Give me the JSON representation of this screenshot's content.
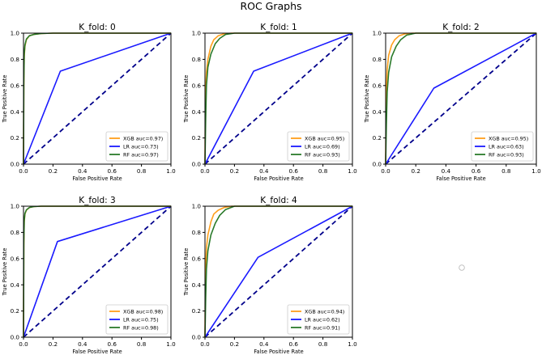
{
  "figure_title": "ROC Graphs",
  "colors": {
    "XGB": "#ff9f1c",
    "LR": "#1a1aff",
    "RF": "#2a7a2a",
    "diagonal": "#00008b"
  },
  "chart_data": [
    {
      "type": "line",
      "title": "K_fold: 0",
      "xlabel": "False Positive Rate",
      "ylabel": "True Positive Rate",
      "xlim": [
        0,
        1
      ],
      "ylim": [
        0,
        1
      ],
      "xticks": [
        "0.0",
        "0.2",
        "0.4",
        "0.6",
        "0.8",
        "1.0"
      ],
      "yticks": [
        "0.0",
        "0.2",
        "0.4",
        "0.6",
        "0.8",
        "1.0"
      ],
      "series": [
        {
          "name": "XGB",
          "label": "XGB auc=0.97)",
          "color": "#ff9f1c",
          "x": [
            0,
            0.002,
            0.005,
            0.01,
            0.02,
            0.04,
            0.07,
            0.12,
            0.2,
            1
          ],
          "y": [
            0,
            0.6,
            0.82,
            0.9,
            0.95,
            0.98,
            0.99,
            0.997,
            1,
            1
          ]
        },
        {
          "name": "LR",
          "label": "LR auc=0.73)",
          "color": "#1a1aff",
          "x": [
            0,
            0.25,
            1
          ],
          "y": [
            0,
            0.71,
            1
          ]
        },
        {
          "name": "RF",
          "label": "RF auc=0.97)",
          "color": "#2a7a2a",
          "x": [
            0,
            0.002,
            0.005,
            0.01,
            0.02,
            0.04,
            0.07,
            0.12,
            0.2,
            1
          ],
          "y": [
            0,
            0.62,
            0.84,
            0.91,
            0.955,
            0.98,
            0.99,
            0.997,
            1,
            1
          ]
        }
      ]
    },
    {
      "type": "line",
      "title": "K_fold: 1",
      "xlabel": "False Positive Rate",
      "ylabel": "True Positive Rate",
      "xlim": [
        0,
        1
      ],
      "ylim": [
        0,
        1
      ],
      "xticks": [
        "0.0",
        "0.2",
        "0.4",
        "0.6",
        "0.8",
        "1.0"
      ],
      "yticks": [
        "0.0",
        "0.2",
        "0.4",
        "0.6",
        "0.8",
        "1.0"
      ],
      "series": [
        {
          "name": "XGB",
          "label": "XGB auc=0.95)",
          "color": "#ff9f1c",
          "x": [
            0,
            0.003,
            0.01,
            0.02,
            0.04,
            0.06,
            0.09,
            0.13,
            0.18,
            1
          ],
          "y": [
            0,
            0.5,
            0.7,
            0.8,
            0.9,
            0.95,
            0.98,
            0.995,
            1,
            1
          ]
        },
        {
          "name": "LR",
          "label": "LR auc=0.69)",
          "color": "#1a1aff",
          "x": [
            0,
            0.33,
            1
          ],
          "y": [
            0,
            0.71,
            1
          ]
        },
        {
          "name": "RF",
          "label": "RF auc=0.93)",
          "color": "#2a7a2a",
          "x": [
            0,
            0.005,
            0.01,
            0.02,
            0.04,
            0.07,
            0.1,
            0.14,
            0.2,
            1
          ],
          "y": [
            0,
            0.35,
            0.6,
            0.74,
            0.84,
            0.92,
            0.96,
            0.99,
            1,
            1
          ]
        }
      ]
    },
    {
      "type": "line",
      "title": "K_fold: 2",
      "xlabel": "False Positive Rate",
      "ylabel": "True Positive Rate",
      "xlim": [
        0,
        1
      ],
      "ylim": [
        0,
        1
      ],
      "xticks": [
        "0.0",
        "0.2",
        "0.4",
        "0.6",
        "0.8",
        "1.0"
      ],
      "yticks": [
        "0.0",
        "0.2",
        "0.4",
        "0.6",
        "0.8",
        "1.0"
      ],
      "series": [
        {
          "name": "XGB",
          "label": "XGB auc=0.95)",
          "color": "#ff9f1c",
          "x": [
            0,
            0.003,
            0.01,
            0.02,
            0.04,
            0.06,
            0.09,
            0.13,
            0.18,
            1
          ],
          "y": [
            0,
            0.5,
            0.72,
            0.83,
            0.91,
            0.95,
            0.98,
            0.995,
            1,
            1
          ]
        },
        {
          "name": "LR",
          "label": "LR auc=0.63)",
          "color": "#1a1aff",
          "x": [
            0,
            0.32,
            1
          ],
          "y": [
            0,
            0.58,
            1
          ]
        },
        {
          "name": "RF",
          "label": "RF auc=0.93)",
          "color": "#2a7a2a",
          "x": [
            0,
            0.005,
            0.01,
            0.02,
            0.04,
            0.07,
            0.1,
            0.14,
            0.2,
            1
          ],
          "y": [
            0,
            0.3,
            0.55,
            0.7,
            0.82,
            0.9,
            0.95,
            0.985,
            1,
            1
          ]
        }
      ]
    },
    {
      "type": "line",
      "title": "K_fold: 3",
      "xlabel": "False Positive Rate",
      "ylabel": "True Positive Rate",
      "xlim": [
        0,
        1
      ],
      "ylim": [
        0,
        1
      ],
      "xticks": [
        "0.0",
        "0.2",
        "0.4",
        "0.6",
        "0.8",
        "1.0"
      ],
      "yticks": [
        "0.0",
        "0.2",
        "0.4",
        "0.6",
        "0.8",
        "1.0"
      ],
      "series": [
        {
          "name": "XGB",
          "label": "XGB auc=0.98)",
          "color": "#ff9f1c",
          "x": [
            0,
            0.002,
            0.005,
            0.01,
            0.02,
            0.04,
            0.07,
            0.12,
            1
          ],
          "y": [
            0,
            0.7,
            0.88,
            0.94,
            0.97,
            0.99,
            0.997,
            1,
            1
          ]
        },
        {
          "name": "LR",
          "label": "LR auc=0.75)",
          "color": "#1a1aff",
          "x": [
            0,
            0.23,
            1
          ],
          "y": [
            0,
            0.73,
            1
          ]
        },
        {
          "name": "RF",
          "label": "RF auc=0.98)",
          "color": "#2a7a2a",
          "x": [
            0,
            0.002,
            0.005,
            0.01,
            0.02,
            0.04,
            0.07,
            0.12,
            1
          ],
          "y": [
            0,
            0.72,
            0.89,
            0.945,
            0.972,
            0.99,
            0.997,
            1,
            1
          ]
        }
      ]
    },
    {
      "type": "line",
      "title": "K_fold: 4",
      "xlabel": "False Positive Rate",
      "ylabel": "True Positive Rate",
      "xlim": [
        0,
        1
      ],
      "ylim": [
        0,
        1
      ],
      "xticks": [
        "0.0",
        "0.2",
        "0.4",
        "0.6",
        "0.8",
        "1.0"
      ],
      "yticks": [
        "0.0",
        "0.2",
        "0.4",
        "0.6",
        "0.8",
        "1.0"
      ],
      "series": [
        {
          "name": "XGB",
          "label": "XGB auc=0.94)",
          "color": "#ff9f1c",
          "x": [
            0,
            0.003,
            0.01,
            0.02,
            0.04,
            0.06,
            0.09,
            0.13,
            0.18,
            1
          ],
          "y": [
            0,
            0.48,
            0.68,
            0.78,
            0.88,
            0.94,
            0.97,
            0.99,
            1,
            1
          ]
        },
        {
          "name": "LR",
          "label": "LR auc=0.62)",
          "color": "#1a1aff",
          "x": [
            0,
            0.36,
            1
          ],
          "y": [
            0,
            0.61,
            1
          ]
        },
        {
          "name": "RF",
          "label": "RF auc=0.91)",
          "color": "#2a7a2a",
          "x": [
            0,
            0.005,
            0.01,
            0.02,
            0.04,
            0.07,
            0.1,
            0.14,
            0.2,
            1
          ],
          "y": [
            0,
            0.3,
            0.52,
            0.66,
            0.78,
            0.87,
            0.93,
            0.975,
            1,
            1
          ]
        }
      ]
    }
  ]
}
